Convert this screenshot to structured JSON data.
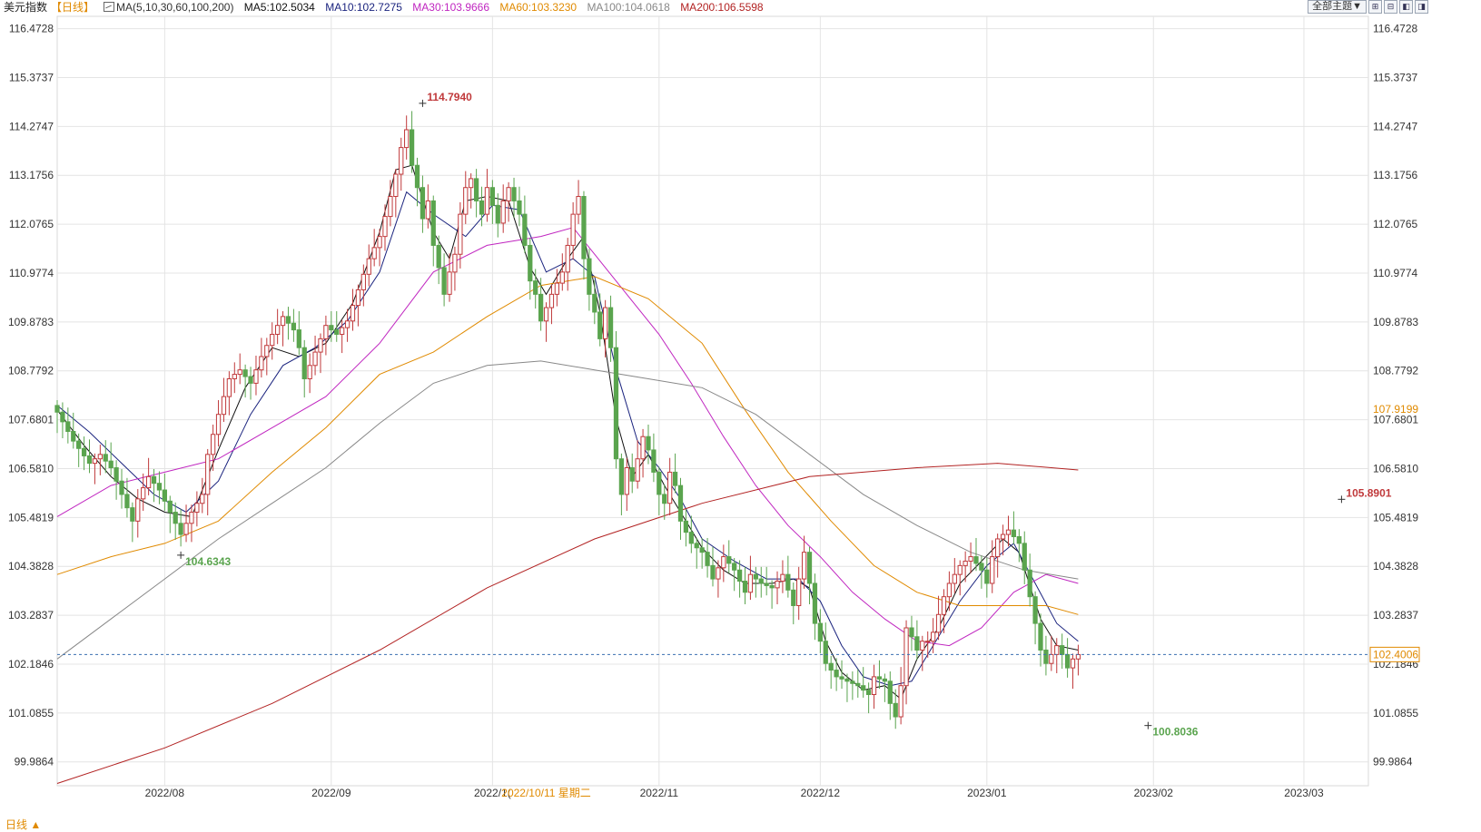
{
  "header": {
    "title": "美元指数",
    "period": "【日线】",
    "ma_label": "MA(5,10,30,60,100,200)",
    "ma_values": [
      {
        "text": "MA5:102.5034",
        "color": "#111111"
      },
      {
        "text": "MA10:102.7275",
        "color": "#1a237e"
      },
      {
        "text": "MA30:103.9666",
        "color": "#c026c0"
      },
      {
        "text": "MA60:103.3230",
        "color": "#e08a00"
      },
      {
        "text": "MA100:104.0618",
        "color": "#888888"
      },
      {
        "text": "MA200:106.5598",
        "color": "#b22222"
      }
    ]
  },
  "toolbar": {
    "theme_select": "全部主题▼",
    "buttons": [
      {
        "icon": "grid-icon",
        "glyph": "⊞"
      },
      {
        "icon": "grid-icon",
        "glyph": "⊟"
      },
      {
        "icon": "page-left-icon",
        "glyph": "◧"
      },
      {
        "icon": "page-right-icon",
        "glyph": "◨"
      }
    ]
  },
  "footer": {
    "period_switch": "日线 ▲"
  },
  "colors": {
    "up": "#c0393b",
    "down": "#5aa44e",
    "grid": "#e4e4e4",
    "last_price_line": "#3a6fb0",
    "axis_text": "#333333",
    "marker_orange": "#e08a00"
  },
  "chart_data": {
    "type": "candlestick",
    "ylim": [
      99.45,
      116.75
    ],
    "price_ticks": [
      "116.4728",
      "115.3737",
      "114.2747",
      "113.1756",
      "112.0765",
      "110.9774",
      "109.8783",
      "108.7792",
      "107.6801",
      "106.5810",
      "105.4819",
      "104.3828",
      "103.2837",
      "102.1846",
      "101.0855",
      "99.9864"
    ],
    "x_labels": [
      {
        "text": "2022/08",
        "day": 20
      },
      {
        "text": "2022/09",
        "day": 51
      },
      {
        "text": "2022/1(",
        "day": 81
      },
      {
        "text": "2022/11",
        "day": 112
      },
      {
        "text": "2022/12",
        "day": 142
      },
      {
        "text": "2023/01",
        "day": 173
      },
      {
        "text": "2023/02",
        "day": 204
      },
      {
        "text": "2023/03",
        "day": 232
      }
    ],
    "crosshair_date": "2022/10/11 星期二",
    "crosshair_day": 91,
    "ticker": {
      "last_value": "102.4006",
      "last_price": 102.4006,
      "ma_tag_value": "107.9199",
      "ma_tag_price": 107.9199
    },
    "extremes": [
      {
        "label": "114.7940",
        "price": 114.794,
        "day": 68,
        "kind": "high"
      },
      {
        "label": "104.6343",
        "price": 104.6343,
        "day": 23,
        "kind": "low"
      },
      {
        "label": "100.8036",
        "price": 100.8036,
        "day": 203,
        "kind": "low"
      },
      {
        "label": "105.8901",
        "price": 105.8901,
        "day": 239,
        "kind": "high"
      }
    ],
    "closes": [
      [
        0,
        107.85
      ],
      [
        3,
        107.2
      ],
      [
        6,
        106.7
      ],
      [
        8,
        106.9
      ],
      [
        10,
        106.6
      ],
      [
        12,
        106.0
      ],
      [
        14,
        105.4
      ],
      [
        15,
        105.9
      ],
      [
        17,
        106.4
      ],
      [
        19,
        106.1
      ],
      [
        21,
        105.6
      ],
      [
        23,
        105.1
      ],
      [
        25,
        105.6
      ],
      [
        27,
        106.0
      ],
      [
        28,
        106.9
      ],
      [
        30,
        107.8
      ],
      [
        32,
        108.6
      ],
      [
        34,
        108.8
      ],
      [
        36,
        108.5
      ],
      [
        38,
        109.1
      ],
      [
        40,
        109.6
      ],
      [
        42,
        110.0
      ],
      [
        44,
        109.7
      ],
      [
        45,
        109.3
      ],
      [
        46,
        108.6
      ],
      [
        48,
        109.2
      ],
      [
        50,
        109.8
      ],
      [
        52,
        109.6
      ],
      [
        54,
        109.9
      ],
      [
        56,
        110.6
      ],
      [
        58,
        111.3
      ],
      [
        60,
        111.8
      ],
      [
        62,
        112.7
      ],
      [
        63,
        113.2
      ],
      [
        64,
        113.8
      ],
      [
        65,
        114.2
      ],
      [
        66,
        113.4
      ],
      [
        67,
        112.9
      ],
      [
        68,
        112.2
      ],
      [
        69,
        112.6
      ],
      [
        70,
        111.6
      ],
      [
        71,
        111.1
      ],
      [
        72,
        110.5
      ],
      [
        73,
        111.0
      ],
      [
        74,
        111.4
      ],
      [
        75,
        112.3
      ],
      [
        76,
        112.9
      ],
      [
        77,
        113.1
      ],
      [
        78,
        112.6
      ],
      [
        79,
        112.3
      ],
      [
        80,
        112.9
      ],
      [
        81,
        112.5
      ],
      [
        82,
        112.1
      ],
      [
        83,
        112.6
      ],
      [
        84,
        112.9
      ],
      [
        85,
        112.6
      ],
      [
        86,
        112.3
      ],
      [
        87,
        111.6
      ],
      [
        88,
        110.8
      ],
      [
        89,
        110.5
      ],
      [
        90,
        109.9
      ],
      [
        92,
        110.5
      ],
      [
        94,
        111.0
      ],
      [
        95,
        111.6
      ],
      [
        96,
        112.3
      ],
      [
        97,
        112.7
      ],
      [
        98,
        111.3
      ],
      [
        99,
        110.5
      ],
      [
        100,
        110.1
      ],
      [
        101,
        109.5
      ],
      [
        102,
        110.2
      ],
      [
        103,
        109.3
      ],
      [
        104,
        106.8
      ],
      [
        105,
        106.0
      ],
      [
        106,
        106.6
      ],
      [
        107,
        106.3
      ],
      [
        108,
        106.8
      ],
      [
        109,
        107.3
      ],
      [
        110,
        107.0
      ],
      [
        111,
        106.5
      ],
      [
        112,
        106.0
      ],
      [
        113,
        105.8
      ],
      [
        114,
        106.5
      ],
      [
        115,
        106.2
      ],
      [
        116,
        105.4
      ],
      [
        118,
        104.9
      ],
      [
        120,
        104.7
      ],
      [
        122,
        104.1
      ],
      [
        124,
        104.6
      ],
      [
        126,
        104.3
      ],
      [
        128,
        103.8
      ],
      [
        129,
        104.2
      ],
      [
        131,
        104.0
      ],
      [
        133,
        103.9
      ],
      [
        135,
        104.2
      ],
      [
        137,
        103.5
      ],
      [
        139,
        104.7
      ],
      [
        140,
        104.0
      ],
      [
        141,
        103.1
      ],
      [
        142,
        102.7
      ],
      [
        143,
        102.2
      ],
      [
        145,
        101.9
      ],
      [
        147,
        101.8
      ],
      [
        149,
        101.7
      ],
      [
        151,
        101.5
      ],
      [
        152,
        101.9
      ],
      [
        154,
        101.8
      ],
      [
        155,
        101.3
      ],
      [
        156,
        101.0
      ],
      [
        157,
        101.7
      ],
      [
        158,
        103.0
      ],
      [
        159,
        102.8
      ],
      [
        160,
        102.5
      ],
      [
        161,
        102.7
      ],
      [
        162,
        102.7
      ],
      [
        163,
        102.9
      ],
      [
        164,
        103.3
      ],
      [
        165,
        103.7
      ],
      [
        166,
        104.0
      ],
      [
        168,
        104.4
      ],
      [
        170,
        104.6
      ],
      [
        172,
        104.3
      ],
      [
        173,
        104.0
      ],
      [
        174,
        104.6
      ],
      [
        175,
        105.0
      ],
      [
        177,
        105.2
      ],
      [
        179,
        104.9
      ],
      [
        180,
        104.3
      ],
      [
        181,
        103.7
      ],
      [
        182,
        103.1
      ],
      [
        183,
        102.5
      ],
      [
        184,
        102.2
      ],
      [
        186,
        102.6
      ],
      [
        187,
        102.4
      ],
      [
        188,
        102.1
      ],
      [
        189,
        102.3
      ],
      [
        190,
        102.4
      ]
    ],
    "ma": [
      {
        "name": "MA5",
        "color": "#111111",
        "points": [
          [
            0,
            107.9
          ],
          [
            5,
            107.1
          ],
          [
            10,
            106.4
          ],
          [
            15,
            105.9
          ],
          [
            20,
            105.6
          ],
          [
            25,
            105.5
          ],
          [
            30,
            107.0
          ],
          [
            35,
            108.4
          ],
          [
            40,
            109.3
          ],
          [
            45,
            109.1
          ],
          [
            50,
            109.4
          ],
          [
            55,
            110.3
          ],
          [
            60,
            111.9
          ],
          [
            63,
            113.3
          ],
          [
            66,
            113.4
          ],
          [
            70,
            111.9
          ],
          [
            73,
            111.3
          ],
          [
            76,
            112.6
          ],
          [
            80,
            112.7
          ],
          [
            84,
            112.6
          ],
          [
            88,
            111.1
          ],
          [
            91,
            110.5
          ],
          [
            95,
            111.3
          ],
          [
            98,
            111.8
          ],
          [
            101,
            110.1
          ],
          [
            104,
            107.7
          ],
          [
            107,
            106.4
          ],
          [
            110,
            106.9
          ],
          [
            113,
            106.2
          ],
          [
            116,
            105.6
          ],
          [
            120,
            104.8
          ],
          [
            124,
            104.3
          ],
          [
            128,
            104.0
          ],
          [
            133,
            104.0
          ],
          [
            137,
            104.1
          ],
          [
            140,
            103.9
          ],
          [
            143,
            102.7
          ],
          [
            146,
            102.0
          ],
          [
            150,
            101.6
          ],
          [
            154,
            101.7
          ],
          [
            157,
            101.4
          ],
          [
            160,
            102.3
          ],
          [
            164,
            103.0
          ],
          [
            168,
            104.0
          ],
          [
            172,
            104.5
          ],
          [
            176,
            105.0
          ],
          [
            179,
            104.7
          ],
          [
            183,
            103.2
          ],
          [
            186,
            102.6
          ],
          [
            190,
            102.5
          ]
        ]
      },
      {
        "name": "MA10",
        "color": "#1a237e",
        "points": [
          [
            0,
            108.0
          ],
          [
            6,
            107.4
          ],
          [
            12,
            106.7
          ],
          [
            18,
            106.0
          ],
          [
            24,
            105.6
          ],
          [
            30,
            106.3
          ],
          [
            36,
            107.8
          ],
          [
            42,
            108.9
          ],
          [
            48,
            109.3
          ],
          [
            54,
            109.9
          ],
          [
            60,
            111.0
          ],
          [
            65,
            112.8
          ],
          [
            70,
            112.3
          ],
          [
            76,
            111.8
          ],
          [
            81,
            112.5
          ],
          [
            86,
            112.4
          ],
          [
            91,
            111.0
          ],
          [
            96,
            111.3
          ],
          [
            100,
            110.9
          ],
          [
            104,
            108.8
          ],
          [
            108,
            107.2
          ],
          [
            112,
            106.6
          ],
          [
            116,
            105.9
          ],
          [
            120,
            105.0
          ],
          [
            126,
            104.5
          ],
          [
            132,
            104.1
          ],
          [
            138,
            104.1
          ],
          [
            142,
            103.6
          ],
          [
            146,
            102.6
          ],
          [
            150,
            101.9
          ],
          [
            155,
            101.7
          ],
          [
            159,
            101.8
          ],
          [
            163,
            102.6
          ],
          [
            168,
            103.6
          ],
          [
            173,
            104.4
          ],
          [
            178,
            104.9
          ],
          [
            182,
            104.0
          ],
          [
            186,
            103.1
          ],
          [
            190,
            102.7
          ]
        ]
      },
      {
        "name": "MA30",
        "color": "#c026c0",
        "points": [
          [
            0,
            105.5
          ],
          [
            10,
            106.2
          ],
          [
            20,
            106.5
          ],
          [
            30,
            106.8
          ],
          [
            40,
            107.5
          ],
          [
            50,
            108.2
          ],
          [
            60,
            109.4
          ],
          [
            70,
            111.0
          ],
          [
            80,
            111.6
          ],
          [
            90,
            111.8
          ],
          [
            96,
            112.0
          ],
          [
            100,
            111.4
          ],
          [
            106,
            110.5
          ],
          [
            112,
            109.6
          ],
          [
            118,
            108.5
          ],
          [
            124,
            107.3
          ],
          [
            130,
            106.2
          ],
          [
            136,
            105.3
          ],
          [
            142,
            104.6
          ],
          [
            148,
            103.8
          ],
          [
            154,
            103.2
          ],
          [
            160,
            102.7
          ],
          [
            166,
            102.6
          ],
          [
            172,
            103.0
          ],
          [
            178,
            103.8
          ],
          [
            184,
            104.2
          ],
          [
            190,
            104.0
          ]
        ]
      },
      {
        "name": "MA60",
        "color": "#e08a00",
        "points": [
          [
            0,
            104.2
          ],
          [
            10,
            104.6
          ],
          [
            20,
            104.9
          ],
          [
            30,
            105.4
          ],
          [
            40,
            106.5
          ],
          [
            50,
            107.5
          ],
          [
            60,
            108.7
          ],
          [
            70,
            109.2
          ],
          [
            80,
            110.0
          ],
          [
            90,
            110.7
          ],
          [
            100,
            110.9
          ],
          [
            110,
            110.4
          ],
          [
            120,
            109.4
          ],
          [
            128,
            107.9
          ],
          [
            136,
            106.5
          ],
          [
            144,
            105.4
          ],
          [
            152,
            104.4
          ],
          [
            160,
            103.8
          ],
          [
            168,
            103.5
          ],
          [
            176,
            103.5
          ],
          [
            184,
            103.5
          ],
          [
            190,
            103.3
          ]
        ]
      },
      {
        "name": "MA100",
        "color": "#888888",
        "points": [
          [
            0,
            102.3
          ],
          [
            10,
            103.2
          ],
          [
            20,
            104.1
          ],
          [
            30,
            105.0
          ],
          [
            40,
            105.8
          ],
          [
            50,
            106.6
          ],
          [
            60,
            107.6
          ],
          [
            70,
            108.5
          ],
          [
            80,
            108.9
          ],
          [
            90,
            109.0
          ],
          [
            100,
            108.8
          ],
          [
            110,
            108.6
          ],
          [
            120,
            108.4
          ],
          [
            130,
            107.8
          ],
          [
            140,
            106.9
          ],
          [
            150,
            106.0
          ],
          [
            160,
            105.3
          ],
          [
            170,
            104.7
          ],
          [
            180,
            104.3
          ],
          [
            190,
            104.1
          ]
        ]
      },
      {
        "name": "MA200",
        "color": "#b22222",
        "points": [
          [
            0,
            99.5
          ],
          [
            20,
            100.3
          ],
          [
            40,
            101.3
          ],
          [
            60,
            102.5
          ],
          [
            80,
            103.9
          ],
          [
            100,
            105.0
          ],
          [
            120,
            105.8
          ],
          [
            140,
            106.4
          ],
          [
            160,
            106.6
          ],
          [
            175,
            106.7
          ],
          [
            190,
            106.55
          ]
        ]
      }
    ]
  }
}
